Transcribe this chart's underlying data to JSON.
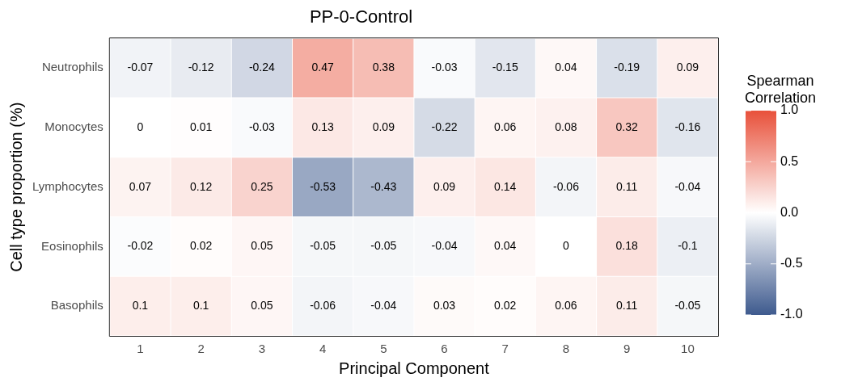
{
  "chart_data": {
    "type": "heatmap",
    "title": "PP-0-Control",
    "xlabel": "Principal Component",
    "ylabel": "Cell type proportion (%)",
    "clabel": "Spearman Correlation",
    "categories": [
      "1",
      "2",
      "3",
      "4",
      "5",
      "6",
      "7",
      "8",
      "9",
      "10"
    ],
    "y_categories": [
      "Neutrophils",
      "Monocytes",
      "Lymphocytes",
      "Eosinophils",
      "Basophils"
    ],
    "cells": [
      [
        -0.07,
        -0.12,
        -0.24,
        0.47,
        0.38,
        -0.03,
        -0.15,
        0.04,
        -0.19,
        0.09
      ],
      [
        0,
        0.01,
        -0.03,
        0.13,
        0.09,
        -0.22,
        0.06,
        0.08,
        0.32,
        -0.16
      ],
      [
        0.07,
        0.12,
        0.25,
        -0.53,
        -0.43,
        0.09,
        0.14,
        -0.06,
        0.11,
        -0.04
      ],
      [
        -0.02,
        0.02,
        0.05,
        -0.05,
        -0.05,
        -0.04,
        0.04,
        0,
        0.18,
        -0.1
      ],
      [
        0.1,
        0.1,
        0.05,
        -0.06,
        -0.04,
        0.03,
        0.02,
        0.06,
        0.11,
        -0.05
      ]
    ],
    "clim": [
      -1,
      1
    ],
    "cticks": [
      {
        "value": -1,
        "label": "-1.0"
      },
      {
        "value": -0.5,
        "label": "-0.5"
      },
      {
        "value": 0,
        "label": "0.0"
      },
      {
        "value": 0.5,
        "label": "0.5"
      },
      {
        "value": 1,
        "label": "1.0"
      }
    ],
    "data_labels": true,
    "grid": false,
    "legend": false
  }
}
